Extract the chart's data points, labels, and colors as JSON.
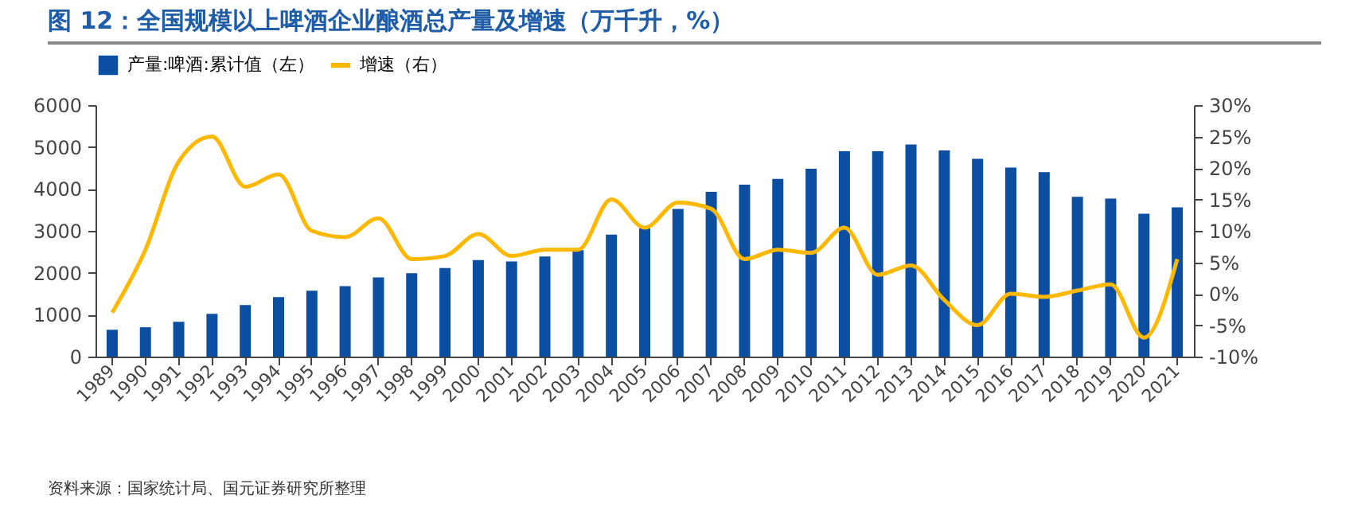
{
  "chart_data": {
    "type": "bar",
    "title": "图 12：全国规模以上啤酒企业酿酒总产量及增速（万千升，%）",
    "categories": [
      "1989",
      "1990",
      "1991",
      "1992",
      "1993",
      "1994",
      "1995",
      "1996",
      "1997",
      "1998",
      "1999",
      "2000",
      "2001",
      "2002",
      "2003",
      "2004",
      "2005",
      "2006",
      "2007",
      "2008",
      "2009",
      "2010",
      "2011",
      "2012",
      "2013",
      "2014",
      "2015",
      "2016",
      "2017",
      "2018",
      "2019",
      "2020",
      "2021"
    ],
    "series": [
      {
        "name": "产量:啤酒:累计值（左）",
        "color": "#0b4ea2",
        "values": [
          640,
          700,
          830,
          1020,
          1230,
          1420,
          1570,
          1680,
          1890,
          1990,
          2110,
          2300,
          2270,
          2390,
          2540,
          2910,
          3060,
          3520,
          3930,
          4100,
          4240,
          4480,
          4900,
          4900,
          5060,
          4920,
          4720,
          4510,
          4400,
          3810,
          3770,
          3410,
          3560
        ]
      },
      {
        "name": "增速（右）",
        "type": "line",
        "axis": "y2",
        "color": "#ffb800",
        "values": [
          -3,
          7,
          21,
          25,
          17,
          19,
          10,
          9,
          12,
          5.5,
          6,
          9.5,
          6,
          7,
          7,
          15,
          10.5,
          14.5,
          13.5,
          5.5,
          7,
          6.5,
          10.5,
          3,
          4.5,
          -1,
          -5,
          0,
          -0.5,
          0.5,
          1.5,
          -7,
          5.5
        ]
      }
    ],
    "ylim": [
      0,
      6000
    ],
    "yticks": [
      0,
      1000,
      2000,
      3000,
      4000,
      5000,
      6000
    ],
    "y2lim": [
      -10,
      30
    ],
    "y2ticks": [
      {
        "value": -10,
        "label": "-10%"
      },
      {
        "value": -5,
        "label": "-5%"
      },
      {
        "value": 0,
        "label": "0%"
      },
      {
        "value": 5,
        "label": "5%"
      },
      {
        "value": 10,
        "label": "10%"
      },
      {
        "value": 15,
        "label": "15%"
      },
      {
        "value": 20,
        "label": "20%"
      },
      {
        "value": 25,
        "label": "25%"
      },
      {
        "value": 30,
        "label": "30%"
      }
    ],
    "grid": false,
    "legend": "top",
    "annotations": [
      "资料来源：国家统计局、国元证券研究所整理"
    ]
  }
}
